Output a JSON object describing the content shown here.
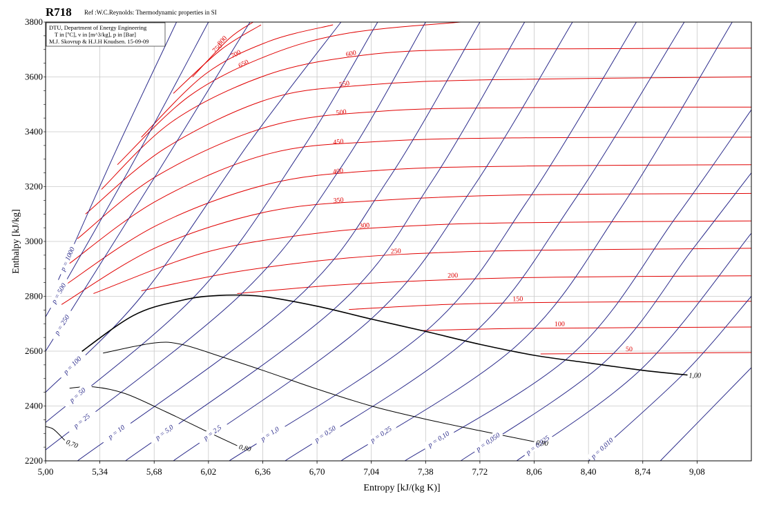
{
  "chart_data": {
    "type": "line",
    "title": "R718",
    "subtitle": "Ref :W.C.Reynolds: Thermodynamic properties in SI",
    "info_lines": [
      "DTU, Department of Energy Engineering",
      "T in [ºC], v in [m^3/kg], p in [Bar]",
      "M.J. Skovrup & H.J.H Knudsen. 15-09-09"
    ],
    "xlabel": "Entropy [kJ/(kg K)]",
    "ylabel": "Enthalpy [kJ/kg]",
    "xlim": [
      5.0,
      9.42
    ],
    "ylim": [
      2200,
      3800
    ],
    "xticks": [
      "5,00",
      "5,34",
      "5,68",
      "6,02",
      "6,36",
      "6,70",
      "7,04",
      "7,38",
      "7,72",
      "8,06",
      "8,40",
      "8,74",
      "9,08"
    ],
    "yticks": [
      "2200",
      "2400",
      "2600",
      "2800",
      "3000",
      "3200",
      "3400",
      "3600",
      "3800"
    ],
    "grid": true,
    "colors": {
      "temperature": "#e00000",
      "pressure": "#2a2a8a",
      "quality": "#000000",
      "saturation": "#000000"
    },
    "saturation_curve": [
      [
        5.19,
        2583
      ],
      [
        5.55,
        2730
      ],
      [
        5.85,
        2785
      ],
      [
        6.08,
        2803
      ],
      [
        6.35,
        2800
      ],
      [
        6.7,
        2764
      ],
      [
        7.04,
        2717
      ],
      [
        7.38,
        2672
      ],
      [
        7.72,
        2625
      ],
      [
        8.06,
        2585
      ],
      [
        8.4,
        2557
      ],
      [
        8.74,
        2530
      ],
      [
        9.02,
        2513
      ]
    ],
    "quality_lines": [
      {
        "label": "0,90",
        "points": [
          [
            5.36,
            2593
          ],
          [
            5.68,
            2630
          ],
          [
            5.85,
            2625
          ],
          [
            6.1,
            2580
          ],
          [
            6.36,
            2530
          ],
          [
            6.7,
            2462
          ],
          [
            7.04,
            2400
          ],
          [
            7.38,
            2352
          ],
          [
            7.72,
            2310
          ],
          [
            8.06,
            2270
          ]
        ]
      },
      {
        "label": "0,80",
        "points": [
          [
            5.15,
            2465
          ],
          [
            5.3,
            2470
          ],
          [
            5.5,
            2445
          ],
          [
            5.75,
            2380
          ],
          [
            6.0,
            2310
          ],
          [
            6.2,
            2255
          ]
        ]
      },
      {
        "label": "0,70",
        "points": [
          [
            5.0,
            2325
          ],
          [
            5.05,
            2315
          ],
          [
            5.12,
            2275
          ]
        ]
      }
    ],
    "isobars": [
      {
        "label": "p = 1000",
        "points": [
          [
            5.08,
            2860
          ],
          [
            5.44,
            3330
          ],
          [
            5.82,
            3800
          ]
        ]
      },
      {
        "label": "p = 500",
        "points": [
          [
            5.0,
            2725
          ],
          [
            5.55,
            3290
          ],
          [
            6.02,
            3800
          ]
        ]
      },
      {
        "label": "p = 250",
        "points": [
          [
            5.0,
            2600
          ],
          [
            5.7,
            3250
          ],
          [
            6.28,
            3800
          ]
        ]
      },
      {
        "label": "p = 100",
        "points": [
          [
            5.0,
            2450
          ],
          [
            5.6,
            2800
          ],
          [
            6.3,
            3380
          ],
          [
            6.85,
            3800
          ]
        ]
      },
      {
        "label": "p = 50",
        "points": [
          [
            5.0,
            2340
          ],
          [
            5.95,
            2810
          ],
          [
            6.6,
            3330
          ],
          [
            7.08,
            3800
          ]
        ]
      },
      {
        "label": "p = 25",
        "points": [
          [
            5.0,
            2240
          ],
          [
            6.22,
            2805
          ],
          [
            6.85,
            3270
          ],
          [
            7.38,
            3800
          ]
        ]
      },
      {
        "label": "p = 10",
        "points": [
          [
            5.2,
            2200
          ],
          [
            6.55,
            2780
          ],
          [
            7.15,
            3230
          ],
          [
            7.72,
            3800
          ]
        ]
      },
      {
        "label": "p = 5,0",
        "points": [
          [
            5.5,
            2200
          ],
          [
            6.82,
            2760
          ],
          [
            7.42,
            3220
          ],
          [
            8.0,
            3800
          ]
        ]
      },
      {
        "label": "p = 2,5",
        "points": [
          [
            5.8,
            2200
          ],
          [
            7.04,
            2718
          ],
          [
            7.68,
            3200
          ],
          [
            8.3,
            3800
          ]
        ]
      },
      {
        "label": "p = 1,0",
        "points": [
          [
            6.15,
            2200
          ],
          [
            7.38,
            2672
          ],
          [
            8.02,
            3150
          ],
          [
            8.7,
            3800
          ]
        ]
      },
      {
        "label": "p = 0,50",
        "points": [
          [
            6.5,
            2200
          ],
          [
            7.65,
            2648
          ],
          [
            8.3,
            3140
          ],
          [
            9.0,
            3800
          ]
        ]
      },
      {
        "label": "p = 0,25",
        "points": [
          [
            6.85,
            2200
          ],
          [
            7.95,
            2620
          ],
          [
            8.6,
            3120
          ],
          [
            9.3,
            3800
          ]
        ]
      },
      {
        "label": "p = 0,10",
        "points": [
          [
            7.25,
            2200
          ],
          [
            8.3,
            2590
          ],
          [
            8.95,
            3090
          ],
          [
            9.42,
            3480
          ]
        ]
      },
      {
        "label": "p = 0,050",
        "points": [
          [
            7.6,
            2200
          ],
          [
            8.5,
            2560
          ],
          [
            9.05,
            2970
          ],
          [
            9.42,
            3250
          ]
        ]
      },
      {
        "label": "p = 0,025",
        "points": [
          [
            7.95,
            2200
          ],
          [
            8.74,
            2540
          ],
          [
            9.42,
            3030
          ]
        ]
      },
      {
        "label": "p = 0,010",
        "points": [
          [
            8.4,
            2200
          ],
          [
            9.0,
            2520
          ],
          [
            9.42,
            2800
          ]
        ]
      },
      {
        "label": "",
        "points": [
          [
            8.85,
            2200
          ],
          [
            9.42,
            2540
          ]
        ]
      }
    ],
    "isotherms": [
      {
        "label": "800",
        "points": [
          [
            5.92,
            3600
          ],
          [
            6.15,
            3740
          ],
          [
            6.3,
            3800
          ]
        ]
      },
      {
        "label": "750",
        "points": [
          [
            5.8,
            3540
          ],
          [
            6.1,
            3700
          ],
          [
            6.35,
            3790
          ]
        ]
      },
      {
        "label": "700",
        "points": [
          [
            5.6,
            3380
          ],
          [
            6.0,
            3610
          ],
          [
            6.4,
            3730
          ],
          [
            6.8,
            3790
          ]
        ]
      },
      {
        "label": "650",
        "points": [
          [
            5.45,
            3280
          ],
          [
            5.9,
            3530
          ],
          [
            6.4,
            3680
          ],
          [
            6.9,
            3760
          ],
          [
            7.6,
            3800
          ]
        ]
      },
      {
        "label": "600",
        "points": [
          [
            5.35,
            3190
          ],
          [
            5.8,
            3440
          ],
          [
            6.4,
            3610
          ],
          [
            7.0,
            3680
          ],
          [
            7.6,
            3700
          ],
          [
            8.4,
            3703
          ],
          [
            9.42,
            3705
          ]
        ]
      },
      {
        "label": "550",
        "points": [
          [
            5.25,
            3100
          ],
          [
            5.75,
            3340
          ],
          [
            6.4,
            3520
          ],
          [
            7.0,
            3570
          ],
          [
            7.8,
            3590
          ],
          [
            9.42,
            3600
          ]
        ]
      },
      {
        "label": "500",
        "points": [
          [
            5.2,
            3010
          ],
          [
            5.7,
            3240
          ],
          [
            6.4,
            3420
          ],
          [
            7.1,
            3475
          ],
          [
            8.0,
            3488
          ],
          [
            9.42,
            3490
          ]
        ]
      },
      {
        "label": "450",
        "points": [
          [
            5.15,
            2920
          ],
          [
            5.7,
            3150
          ],
          [
            6.4,
            3320
          ],
          [
            7.1,
            3365
          ],
          [
            8.0,
            3378
          ],
          [
            9.42,
            3380
          ]
        ]
      },
      {
        "label": "400",
        "points": [
          [
            5.12,
            2840
          ],
          [
            5.7,
            3060
          ],
          [
            6.4,
            3210
          ],
          [
            7.1,
            3260
          ],
          [
            8.0,
            3275
          ],
          [
            9.42,
            3280
          ]
        ]
      },
      {
        "label": "350",
        "points": [
          [
            5.1,
            2770
          ],
          [
            5.7,
            2980
          ],
          [
            6.4,
            3110
          ],
          [
            7.1,
            3150
          ],
          [
            8.0,
            3170
          ],
          [
            9.42,
            3175
          ]
        ]
      },
      {
        "label": "300",
        "points": [
          [
            5.3,
            2810
          ],
          [
            6.0,
            2960
          ],
          [
            6.7,
            3030
          ],
          [
            7.4,
            3060
          ],
          [
            8.2,
            3070
          ],
          [
            9.42,
            3075
          ]
        ]
      },
      {
        "label": "250",
        "points": [
          [
            5.6,
            2820
          ],
          [
            6.2,
            2890
          ],
          [
            6.9,
            2940
          ],
          [
            7.6,
            2962
          ],
          [
            8.4,
            2970
          ],
          [
            9.42,
            2975
          ]
        ]
      },
      {
        "label": "200",
        "points": [
          [
            6.2,
            2810
          ],
          [
            6.8,
            2840
          ],
          [
            7.5,
            2860
          ],
          [
            8.2,
            2870
          ],
          [
            9.42,
            2875
          ]
        ]
      },
      {
        "label": "150",
        "points": [
          [
            6.9,
            2752
          ],
          [
            7.5,
            2770
          ],
          [
            8.2,
            2778
          ],
          [
            9.42,
            2782
          ]
        ]
      },
      {
        "label": "100",
        "points": [
          [
            7.35,
            2675
          ],
          [
            8.0,
            2683
          ],
          [
            9.42,
            2688
          ]
        ]
      },
      {
        "label": "50",
        "points": [
          [
            8.1,
            2590
          ],
          [
            8.6,
            2592
          ],
          [
            9.42,
            2595
          ]
        ]
      }
    ]
  }
}
